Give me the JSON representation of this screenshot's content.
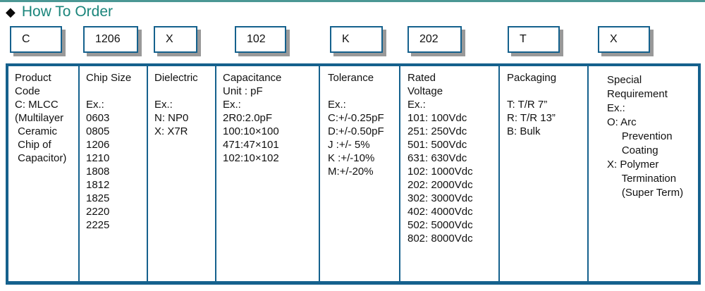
{
  "page": {
    "title": "How To Order"
  },
  "colors": {
    "accent_teal": "#1a857b",
    "top_rule_teal": "#4b9794",
    "border_blue": "#15618d",
    "shadow_gray": "#999999",
    "text": "#111111"
  },
  "code_boxes": [
    "C",
    "1206",
    "X",
    "102",
    "K",
    "202",
    "T",
    "X"
  ],
  "columns": [
    {
      "key": "product-code",
      "lines": [
        "Product",
        "Code",
        "C: MLCC",
        "(Multilayer",
        " Ceramic",
        " Chip of",
        " Capacitor)"
      ]
    },
    {
      "key": "chip-size",
      "lines": [
        "Chip Size",
        "",
        "Ex.:",
        "0603",
        "0805",
        "1206",
        "1210",
        "1808",
        "1812",
        "1825",
        "2220",
        "2225"
      ]
    },
    {
      "key": "dielectric",
      "lines": [
        "Dielectric",
        "",
        "Ex.:",
        "N: NP0",
        "X: X7R"
      ]
    },
    {
      "key": "capacitance",
      "lines": [
        "Capacitance",
        "Unit : pF",
        "Ex.:",
        "2R0:2.0pF",
        "100:10×100",
        "471:47×101",
        "102:10×102"
      ]
    },
    {
      "key": "tolerance",
      "lines": [
        "Tolerance",
        "",
        "Ex.:",
        "C:+/-0.25pF",
        "D:+/-0.50pF",
        "J :+/- 5%",
        "K :+/-10%",
        "M:+/-20%"
      ]
    },
    {
      "key": "rated-voltage",
      "lines": [
        "Rated",
        "Voltage",
        "Ex.:",
        "101: 100Vdc",
        "251: 250Vdc",
        "501: 500Vdc",
        "631: 630Vdc",
        "102: 1000Vdc",
        "202: 2000Vdc",
        "302: 3000Vdc",
        "402: 4000Vdc",
        "502: 5000Vdc",
        "802: 8000Vdc"
      ]
    },
    {
      "key": "packaging",
      "lines": [
        "Packaging",
        "",
        "T: T/R 7”",
        "R: T/R 13”",
        "B: Bulk"
      ]
    },
    {
      "key": "special-requirement",
      "lines": [
        "Special",
        "Requirement",
        "Ex.:",
        "O: Arc",
        "     Prevention",
        "     Coating",
        "X: Polymer",
        "     Termination",
        "     (Super Term)"
      ]
    }
  ]
}
